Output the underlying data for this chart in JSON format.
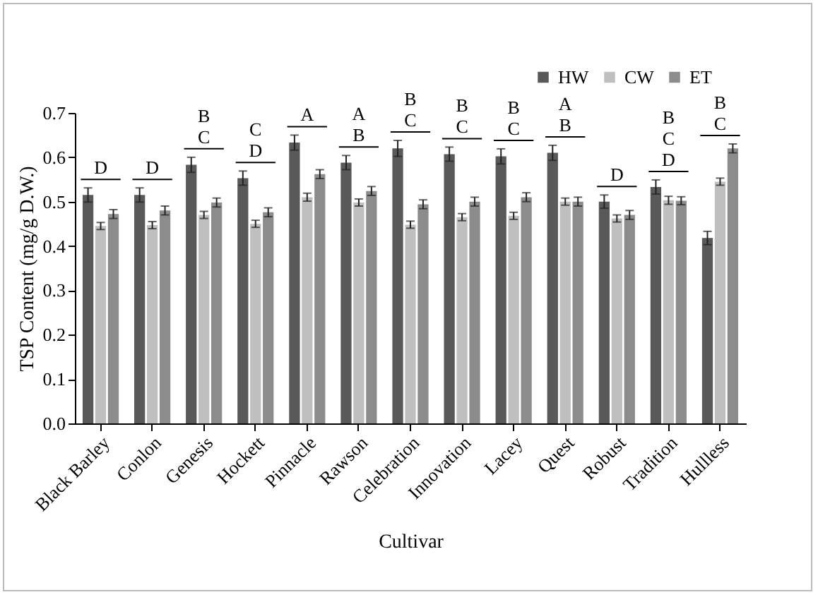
{
  "chart_data": {
    "type": "bar",
    "xlabel": "Cultivar",
    "ylabel": "TSP Content (mg/g  D.W.)",
    "categories": [
      "Black Barley",
      "Conlon",
      "Genesis",
      "Hockett",
      "Pinnacle",
      "Rawson",
      "Celebration",
      "Innovation",
      "Lacey",
      "Quest",
      "Robust",
      "Tradition",
      "Hullless"
    ],
    "series": [
      {
        "name": "HW",
        "color": "#595959",
        "values": [
          0.515,
          0.515,
          0.583,
          0.553,
          0.633,
          0.588,
          0.62,
          0.607,
          0.602,
          0.61,
          0.5,
          0.533,
          0.418
        ],
        "errors": [
          0.016,
          0.016,
          0.017,
          0.016,
          0.017,
          0.016,
          0.018,
          0.016,
          0.017,
          0.017,
          0.015,
          0.016,
          0.015
        ]
      },
      {
        "name": "CW",
        "color": "#bfbfbf",
        "values": [
          0.445,
          0.447,
          0.47,
          0.45,
          0.51,
          0.498,
          0.448,
          0.465,
          0.468,
          0.5,
          0.462,
          0.503,
          0.545
        ],
        "errors": [
          0.008,
          0.008,
          0.008,
          0.008,
          0.009,
          0.008,
          0.008,
          0.008,
          0.008,
          0.008,
          0.008,
          0.009,
          0.008
        ]
      },
      {
        "name": "ET",
        "color": "#8c8c8c",
        "values": [
          0.472,
          0.48,
          0.498,
          0.476,
          0.562,
          0.524,
          0.494,
          0.5,
          0.51,
          0.5,
          0.47,
          0.502,
          0.62
        ],
        "errors": [
          0.01,
          0.01,
          0.01,
          0.01,
          0.01,
          0.01,
          0.01,
          0.01,
          0.01,
          0.01,
          0.01,
          0.009,
          0.01
        ]
      }
    ],
    "ylim": [
      0,
      0.7
    ],
    "yticks": [
      {
        "value": 0,
        "label": "0.0"
      },
      0.1,
      0.2,
      0.3,
      0.4,
      0.5,
      0.6,
      0.7
    ],
    "grid": false,
    "legend": "top right",
    "annotations": [
      "D",
      "D",
      "B\nC",
      "C\nD",
      "A",
      "A\nB",
      "B\nC",
      "B\nC",
      "B\nC",
      "A\nB",
      "D",
      "B\nC\nD",
      "B\nC"
    ]
  }
}
